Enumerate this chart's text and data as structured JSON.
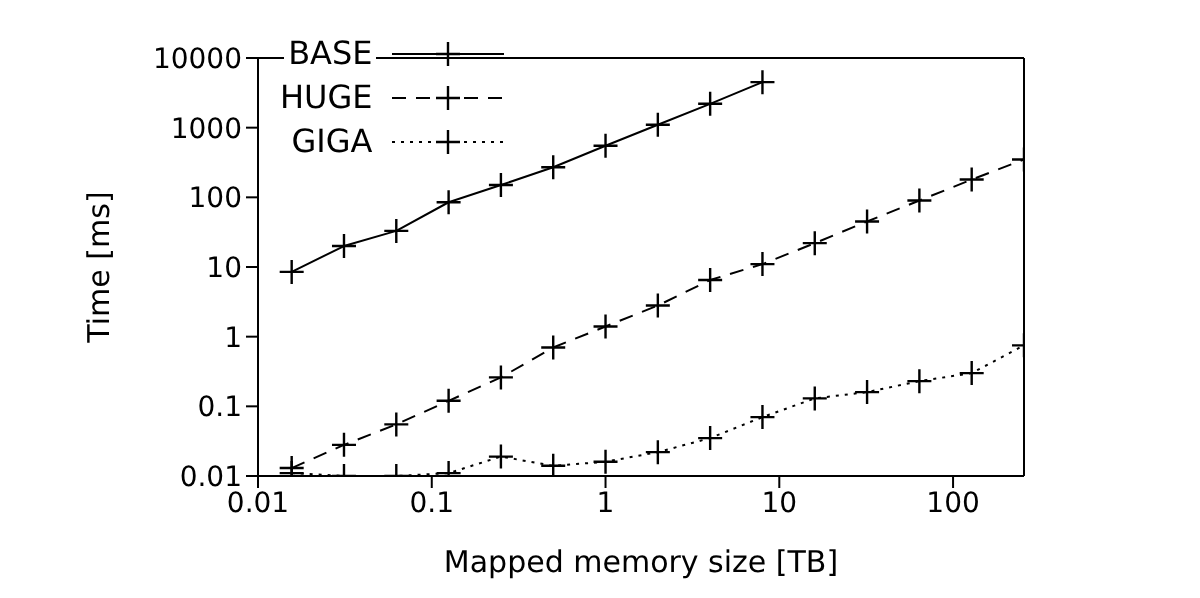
{
  "chart_data": {
    "type": "line",
    "xlabel": "Mapped memory size [TB]",
    "ylabel": "Time [ms]",
    "log": "xy",
    "xlim": [
      0.01,
      256
    ],
    "ylim": [
      0.01,
      10000
    ],
    "xticks": [
      0.01,
      0.1,
      1,
      10,
      100
    ],
    "yticks": [
      0.01,
      0.1,
      1,
      10,
      100,
      1000,
      10000
    ],
    "grid": false,
    "legend": "top left",
    "marker": "cross",
    "x": [
      0.015625,
      0.03125,
      0.0625,
      0.125,
      0.25,
      0.5,
      1,
      2,
      4,
      8,
      16,
      32,
      64,
      128,
      256
    ],
    "series": [
      {
        "name": "BASE",
        "color": "#000000",
        "line_style": "solid",
        "x": [
          0.015625,
          0.03125,
          0.0625,
          0.125,
          0.25,
          0.5,
          1,
          2,
          4,
          8
        ],
        "values": [
          8.5,
          20,
          33,
          85,
          150,
          270,
          550,
          1100,
          2200,
          4500
        ]
      },
      {
        "name": "HUGE",
        "color": "#000000",
        "line_style": "dashed",
        "values": [
          0.013,
          0.028,
          0.055,
          0.12,
          0.26,
          0.7,
          1.4,
          2.8,
          6.5,
          11,
          22,
          45,
          90,
          180,
          350
        ]
      },
      {
        "name": "GIGA",
        "color": "#000000",
        "line_style": "dotted",
        "values": [
          0.011,
          0.01,
          0.01,
          0.011,
          0.019,
          0.014,
          0.016,
          0.022,
          0.035,
          0.07,
          0.13,
          0.16,
          0.23,
          0.3,
          0.75
        ]
      }
    ]
  }
}
